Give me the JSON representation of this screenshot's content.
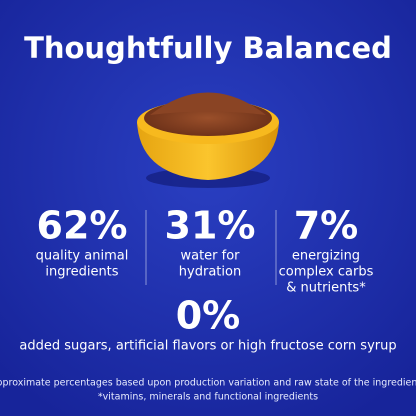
{
  "header": {
    "title": "Thoughtfully Balanced"
  },
  "stats": [
    {
      "value": "62%",
      "label": [
        "quality animal",
        "ingredients"
      ]
    },
    {
      "value": "31%",
      "label": [
        "water for",
        "hydration"
      ]
    },
    {
      "value": "7%",
      "label": [
        "energizing",
        "complex carbs",
        "& nutrients*"
      ]
    },
    {
      "value": "0%",
      "label": [
        "added sugars, artificial flavors or high fructose corn syrup"
      ]
    }
  ],
  "footnote": [
    "Approximate percentages based upon production variation and raw state of the ingredients",
    "*vitamins, minerals and functional ingredients"
  ]
}
